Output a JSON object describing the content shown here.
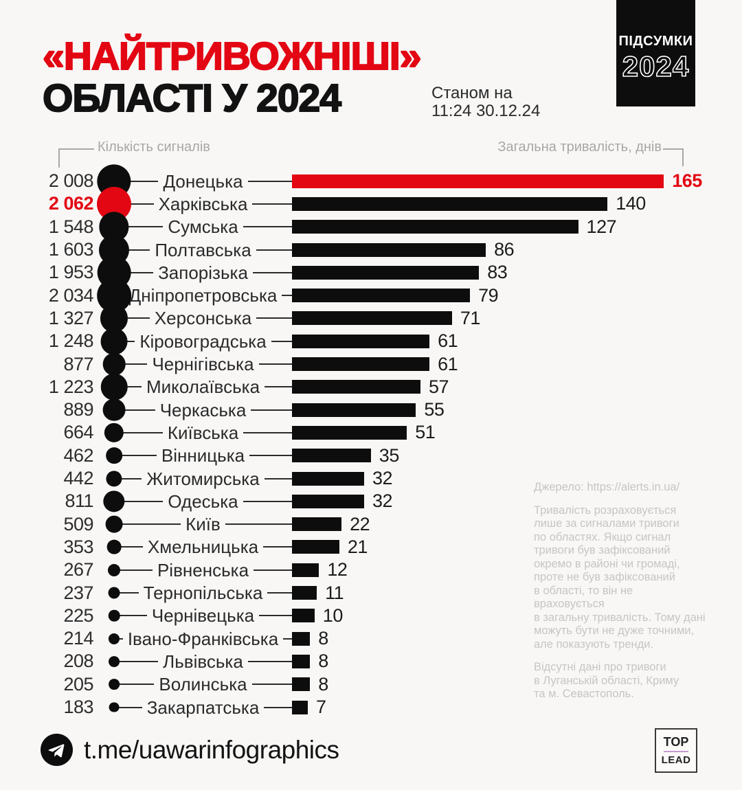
{
  "header": {
    "title_red": "«НАЙТРИВОЖНІШІ»",
    "title_black": "ОБЛАСТІ У 2024",
    "timestamp": "Станом на\n11:24 30.12.24",
    "badge": {
      "line1": "ПІДСУМКИ",
      "line2": "2024"
    }
  },
  "chart_data": {
    "type": "bar",
    "orientation": "horizontal",
    "title": "«НАЙТРИВОЖНІШІ» ОБЛАСТІ У 2024",
    "categories": [
      "Донецька",
      "Харківська",
      "Сумська",
      "Полтавська",
      "Запорізька",
      "Дніпропетровська",
      "Херсонська",
      "Кіровоградська",
      "Чернігівська",
      "Миколаївська",
      "Черкаська",
      "Київська",
      "Вінницька",
      "Житомирська",
      "Одеська",
      "Київ",
      "Хмельницька",
      "Рівненська",
      "Тернопільська",
      "Чернівецька",
      "Івано-Франківська",
      "Львівська",
      "Волинська",
      "Закарпатська"
    ],
    "series": [
      {
        "name": "Кількість сигналів",
        "values": [
          2008,
          2062,
          1548,
          1603,
          1953,
          2034,
          1327,
          1248,
          877,
          1223,
          889,
          664,
          462,
          442,
          811,
          509,
          353,
          267,
          237,
          225,
          214,
          208,
          205,
          183
        ]
      },
      {
        "name": "Загальна тривалість, днів",
        "values": [
          165,
          140,
          127,
          86,
          83,
          79,
          71,
          61,
          61,
          57,
          55,
          51,
          35,
          32,
          32,
          22,
          21,
          12,
          11,
          10,
          8,
          8,
          8,
          7
        ]
      }
    ],
    "xlim": [
      0,
      165
    ],
    "grid": false,
    "legend_position": "top-captions",
    "highlights": {
      "red_bar_index": 0,
      "red_count_index": 1,
      "accent_color": "#e30613",
      "bar_color": "#0d0d0d"
    }
  },
  "notes": {
    "source": "Джерело: https://alerts.in.ua/",
    "paragraph1": "Тривалість розраховується\nлише за сигналами тривоги\nпо областях. Якщо сигнал\nтривоги був зафіксований\nокремо в районі чи громаді,\nпроте не був зафіксований\nв області, то він не враховується\nв загальну тривалість. Тому дані\nможуть бути не дуже точними,\nале показують тренди.",
    "paragraph2": "Відсутні дані про тривоги\nв Луганській області, Криму\nта м. Севастополь."
  },
  "footer": {
    "telegram_handle": "t.me/uawarinfographics",
    "logo": {
      "top": "TOP",
      "bottom": "LEAD"
    }
  }
}
